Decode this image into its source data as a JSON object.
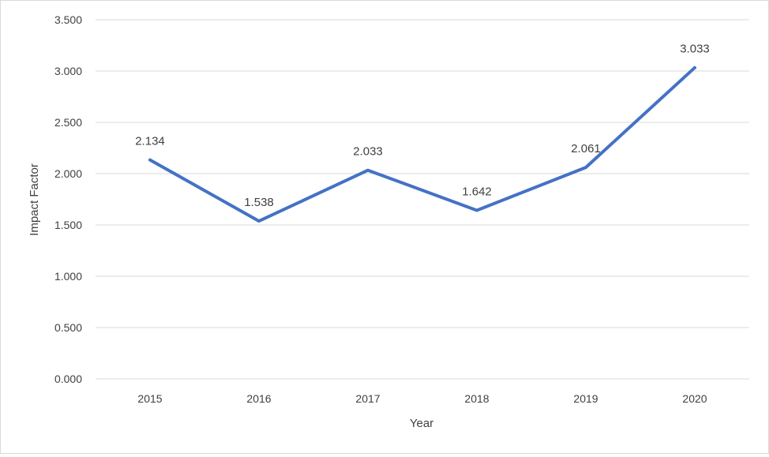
{
  "chart_data": {
    "type": "line",
    "title": "",
    "xlabel": "Year",
    "ylabel": "Impact Factor",
    "categories": [
      "2015",
      "2016",
      "2017",
      "2018",
      "2019",
      "2020"
    ],
    "values": [
      2.134,
      1.538,
      2.033,
      1.642,
      2.061,
      3.033
    ],
    "data_labels": [
      "2.134",
      "1.538",
      "2.033",
      "1.642",
      "2.061",
      "3.033"
    ],
    "ylim": [
      0,
      3.5
    ],
    "y_ticks": [
      0,
      0.5,
      1,
      1.5,
      2,
      2.5,
      3,
      3.5
    ],
    "y_tick_labels": [
      "0.000",
      "0.500",
      "1.000",
      "1.500",
      "2.000",
      "2.500",
      "3.000",
      "3.500"
    ],
    "grid": true,
    "legend": "none",
    "line_color": "#4472C4",
    "grid_color": "#D9D9D9",
    "text_color": "#404040"
  }
}
